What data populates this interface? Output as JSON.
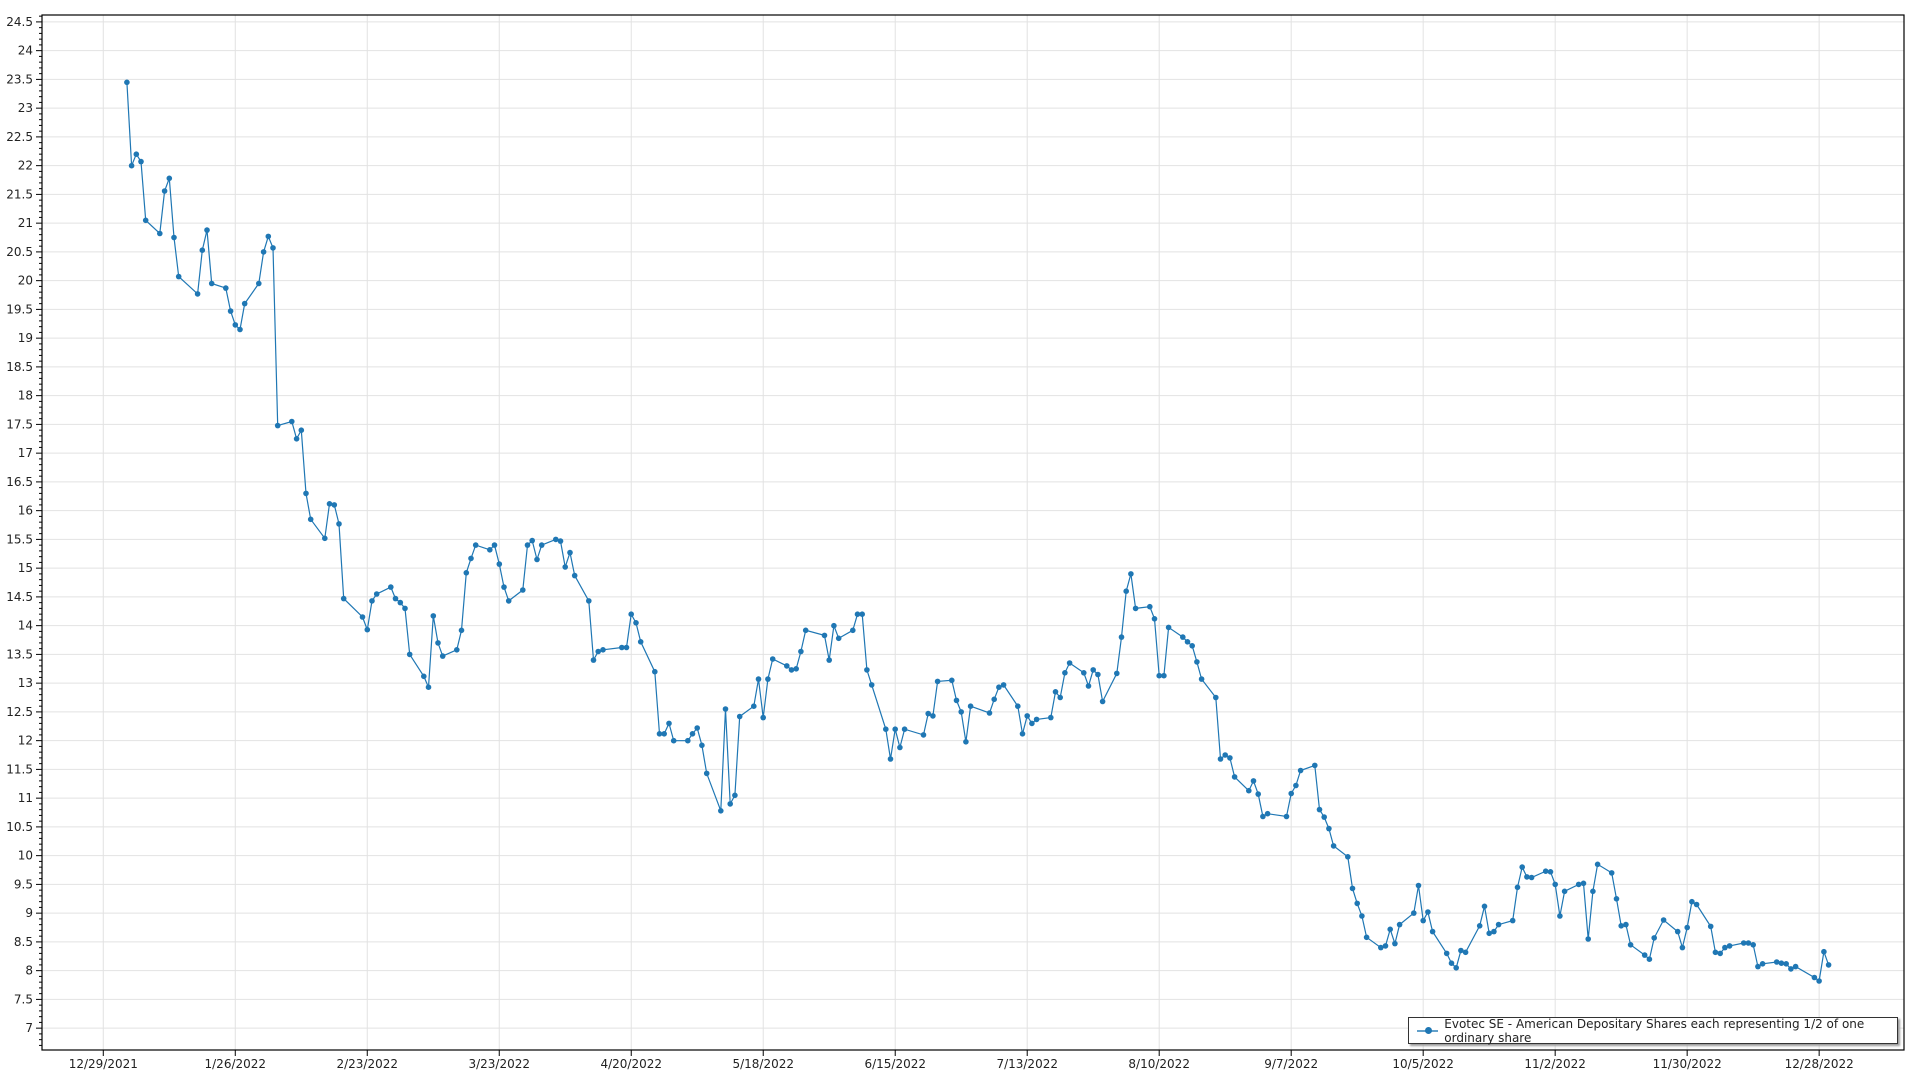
{
  "chart_data": {
    "type": "line",
    "title": "",
    "xlabel": "",
    "ylabel": "",
    "grid": true,
    "legend_placement": "bottom-right",
    "series_color": "#1f77b4",
    "xlim": [
      "2021-12-16",
      "2023-01-15"
    ],
    "ylim": [
      6.62,
      24.62
    ],
    "y_ticks": [
      "7",
      "7.5",
      "8",
      "8.5",
      "9",
      "9.5",
      "10",
      "10.5",
      "11",
      "11.5",
      "12",
      "12.5",
      "13",
      "13.5",
      "14",
      "14.5",
      "15",
      "15.5",
      "16",
      "16.5",
      "17",
      "17.5",
      "18",
      "18.5",
      "19",
      "19.5",
      "20",
      "20.5",
      "21",
      "21.5",
      "22",
      "22.5",
      "23",
      "23.5",
      "24",
      "24.5"
    ],
    "x_ticks": [
      "12/29/2021",
      "1/26/2022",
      "2/23/2022",
      "3/23/2022",
      "4/20/2022",
      "5/18/2022",
      "6/15/2022",
      "7/13/2022",
      "8/10/2022",
      "9/7/2022",
      "10/5/2022",
      "11/2/2022",
      "11/30/2022",
      "12/28/2022"
    ],
    "series": [
      {
        "name": "Evotec SE - American Depositary Shares each representing 1/2 of one ordinary share",
        "points": [
          [
            "2022-01-03",
            23.45
          ],
          [
            "2022-01-04",
            22.0
          ],
          [
            "2022-01-05",
            22.2
          ],
          [
            "2022-01-06",
            22.07
          ],
          [
            "2022-01-07",
            21.05
          ],
          [
            "2022-01-10",
            20.82
          ],
          [
            "2022-01-11",
            21.56
          ],
          [
            "2022-01-12",
            21.78
          ],
          [
            "2022-01-13",
            20.75
          ],
          [
            "2022-01-14",
            20.07
          ],
          [
            "2022-01-18",
            19.77
          ],
          [
            "2022-01-19",
            20.53
          ],
          [
            "2022-01-20",
            20.88
          ],
          [
            "2022-01-21",
            19.95
          ],
          [
            "2022-01-24",
            19.87
          ],
          [
            "2022-01-25",
            19.47
          ],
          [
            "2022-01-26",
            19.23
          ],
          [
            "2022-01-27",
            19.15
          ],
          [
            "2022-01-28",
            19.6
          ],
          [
            "2022-01-31",
            19.95
          ],
          [
            "2022-02-01",
            20.5
          ],
          [
            "2022-02-02",
            20.77
          ],
          [
            "2022-02-03",
            20.57
          ],
          [
            "2022-02-04",
            17.48
          ],
          [
            "2022-02-07",
            17.55
          ],
          [
            "2022-02-08",
            17.25
          ],
          [
            "2022-02-09",
            17.4
          ],
          [
            "2022-02-10",
            16.3
          ],
          [
            "2022-02-11",
            15.85
          ],
          [
            "2022-02-14",
            15.52
          ],
          [
            "2022-02-15",
            16.12
          ],
          [
            "2022-02-16",
            16.1
          ],
          [
            "2022-02-17",
            15.77
          ],
          [
            "2022-02-18",
            14.47
          ],
          [
            "2022-02-22",
            14.15
          ],
          [
            "2022-02-23",
            13.93
          ],
          [
            "2022-02-24",
            14.43
          ],
          [
            "2022-02-25",
            14.55
          ],
          [
            "2022-02-28",
            14.67
          ],
          [
            "2022-03-01",
            14.47
          ],
          [
            "2022-03-02",
            14.4
          ],
          [
            "2022-03-03",
            14.3
          ],
          [
            "2022-03-04",
            13.5
          ],
          [
            "2022-03-07",
            13.12
          ],
          [
            "2022-03-08",
            12.93
          ],
          [
            "2022-03-09",
            14.17
          ],
          [
            "2022-03-10",
            13.7
          ],
          [
            "2022-03-11",
            13.47
          ],
          [
            "2022-03-14",
            13.58
          ],
          [
            "2022-03-15",
            13.92
          ],
          [
            "2022-03-16",
            14.92
          ],
          [
            "2022-03-17",
            15.17
          ],
          [
            "2022-03-18",
            15.4
          ],
          [
            "2022-03-21",
            15.32
          ],
          [
            "2022-03-22",
            15.4
          ],
          [
            "2022-03-23",
            15.07
          ],
          [
            "2022-03-24",
            14.67
          ],
          [
            "2022-03-25",
            14.43
          ],
          [
            "2022-03-28",
            14.62
          ],
          [
            "2022-03-29",
            15.4
          ],
          [
            "2022-03-30",
            15.48
          ],
          [
            "2022-03-31",
            15.15
          ],
          [
            "2022-04-01",
            15.4
          ],
          [
            "2022-04-04",
            15.5
          ],
          [
            "2022-04-05",
            15.47
          ],
          [
            "2022-04-06",
            15.02
          ],
          [
            "2022-04-07",
            15.27
          ],
          [
            "2022-04-08",
            14.87
          ],
          [
            "2022-04-11",
            14.43
          ],
          [
            "2022-04-12",
            13.4
          ],
          [
            "2022-04-13",
            13.55
          ],
          [
            "2022-04-14",
            13.58
          ],
          [
            "2022-04-18",
            13.62
          ],
          [
            "2022-04-19",
            13.62
          ],
          [
            "2022-04-20",
            14.2
          ],
          [
            "2022-04-21",
            14.05
          ],
          [
            "2022-04-22",
            13.72
          ],
          [
            "2022-04-25",
            13.2
          ],
          [
            "2022-04-26",
            12.12
          ],
          [
            "2022-04-27",
            12.12
          ],
          [
            "2022-04-28",
            12.3
          ],
          [
            "2022-04-29",
            12.0
          ],
          [
            "2022-05-02",
            12.0
          ],
          [
            "2022-05-03",
            12.12
          ],
          [
            "2022-05-04",
            12.22
          ],
          [
            "2022-05-05",
            11.92
          ],
          [
            "2022-05-06",
            11.43
          ],
          [
            "2022-05-09",
            10.78
          ],
          [
            "2022-05-10",
            12.55
          ],
          [
            "2022-05-11",
            10.9
          ],
          [
            "2022-05-12",
            11.05
          ],
          [
            "2022-05-13",
            12.42
          ],
          [
            "2022-05-16",
            12.6
          ],
          [
            "2022-05-17",
            13.07
          ],
          [
            "2022-05-18",
            12.4
          ],
          [
            "2022-05-19",
            13.07
          ],
          [
            "2022-05-20",
            13.42
          ],
          [
            "2022-05-23",
            13.3
          ],
          [
            "2022-05-24",
            13.23
          ],
          [
            "2022-05-25",
            13.25
          ],
          [
            "2022-05-26",
            13.55
          ],
          [
            "2022-05-27",
            13.92
          ],
          [
            "2022-05-31",
            13.83
          ],
          [
            "2022-06-01",
            13.4
          ],
          [
            "2022-06-02",
            14.0
          ],
          [
            "2022-06-03",
            13.78
          ],
          [
            "2022-06-06",
            13.92
          ],
          [
            "2022-06-07",
            14.2
          ],
          [
            "2022-06-08",
            14.2
          ],
          [
            "2022-06-09",
            13.23
          ],
          [
            "2022-06-10",
            12.97
          ],
          [
            "2022-06-13",
            12.2
          ],
          [
            "2022-06-14",
            11.68
          ],
          [
            "2022-06-15",
            12.2
          ],
          [
            "2022-06-16",
            11.88
          ],
          [
            "2022-06-17",
            12.2
          ],
          [
            "2022-06-21",
            12.1
          ],
          [
            "2022-06-22",
            12.47
          ],
          [
            "2022-06-23",
            12.43
          ],
          [
            "2022-06-24",
            13.03
          ],
          [
            "2022-06-27",
            13.05
          ],
          [
            "2022-06-28",
            12.7
          ],
          [
            "2022-06-29",
            12.5
          ],
          [
            "2022-06-30",
            11.98
          ],
          [
            "2022-07-01",
            12.6
          ],
          [
            "2022-07-05",
            12.48
          ],
          [
            "2022-07-06",
            12.72
          ],
          [
            "2022-07-07",
            12.93
          ],
          [
            "2022-07-08",
            12.97
          ],
          [
            "2022-07-11",
            12.6
          ],
          [
            "2022-07-12",
            12.12
          ],
          [
            "2022-07-13",
            12.43
          ],
          [
            "2022-07-14",
            12.3
          ],
          [
            "2022-07-15",
            12.37
          ],
          [
            "2022-07-18",
            12.4
          ],
          [
            "2022-07-19",
            12.85
          ],
          [
            "2022-07-20",
            12.75
          ],
          [
            "2022-07-21",
            13.18
          ],
          [
            "2022-07-22",
            13.35
          ],
          [
            "2022-07-25",
            13.18
          ],
          [
            "2022-07-26",
            12.95
          ],
          [
            "2022-07-27",
            13.23
          ],
          [
            "2022-07-28",
            13.15
          ],
          [
            "2022-07-29",
            12.68
          ],
          [
            "2022-08-01",
            13.17
          ],
          [
            "2022-08-02",
            13.8
          ],
          [
            "2022-08-03",
            14.6
          ],
          [
            "2022-08-04",
            14.9
          ],
          [
            "2022-08-05",
            14.3
          ],
          [
            "2022-08-08",
            14.33
          ],
          [
            "2022-08-09",
            14.12
          ],
          [
            "2022-08-10",
            13.13
          ],
          [
            "2022-08-11",
            13.13
          ],
          [
            "2022-08-12",
            13.97
          ],
          [
            "2022-08-15",
            13.8
          ],
          [
            "2022-08-16",
            13.72
          ],
          [
            "2022-08-17",
            13.65
          ],
          [
            "2022-08-18",
            13.37
          ],
          [
            "2022-08-19",
            13.07
          ],
          [
            "2022-08-22",
            12.75
          ],
          [
            "2022-08-23",
            11.68
          ],
          [
            "2022-08-24",
            11.75
          ],
          [
            "2022-08-25",
            11.7
          ],
          [
            "2022-08-26",
            11.37
          ],
          [
            "2022-08-29",
            11.13
          ],
          [
            "2022-08-30",
            11.3
          ],
          [
            "2022-08-31",
            11.07
          ],
          [
            "2022-09-01",
            10.68
          ],
          [
            "2022-09-02",
            10.73
          ],
          [
            "2022-09-06",
            10.68
          ],
          [
            "2022-09-07",
            11.08
          ],
          [
            "2022-09-08",
            11.22
          ],
          [
            "2022-09-09",
            11.48
          ],
          [
            "2022-09-12",
            11.57
          ],
          [
            "2022-09-13",
            10.8
          ],
          [
            "2022-09-14",
            10.67
          ],
          [
            "2022-09-15",
            10.47
          ],
          [
            "2022-09-16",
            10.17
          ],
          [
            "2022-09-19",
            9.98
          ],
          [
            "2022-09-20",
            9.43
          ],
          [
            "2022-09-21",
            9.17
          ],
          [
            "2022-09-22",
            8.95
          ],
          [
            "2022-09-23",
            8.58
          ],
          [
            "2022-09-26",
            8.4
          ],
          [
            "2022-09-27",
            8.43
          ],
          [
            "2022-09-28",
            8.72
          ],
          [
            "2022-09-29",
            8.47
          ],
          [
            "2022-09-30",
            8.8
          ],
          [
            "2022-10-03",
            9.0
          ],
          [
            "2022-10-04",
            9.48
          ],
          [
            "2022-10-05",
            8.87
          ],
          [
            "2022-10-06",
            9.02
          ],
          [
            "2022-10-07",
            8.68
          ],
          [
            "2022-10-10",
            8.3
          ],
          [
            "2022-10-11",
            8.13
          ],
          [
            "2022-10-12",
            8.05
          ],
          [
            "2022-10-13",
            8.35
          ],
          [
            "2022-10-14",
            8.32
          ],
          [
            "2022-10-17",
            8.78
          ],
          [
            "2022-10-18",
            9.12
          ],
          [
            "2022-10-19",
            8.65
          ],
          [
            "2022-10-20",
            8.68
          ],
          [
            "2022-10-21",
            8.8
          ],
          [
            "2022-10-24",
            8.87
          ],
          [
            "2022-10-25",
            9.45
          ],
          [
            "2022-10-26",
            9.8
          ],
          [
            "2022-10-27",
            9.63
          ],
          [
            "2022-10-28",
            9.62
          ],
          [
            "2022-10-31",
            9.73
          ],
          [
            "2022-11-01",
            9.72
          ],
          [
            "2022-11-02",
            9.5
          ],
          [
            "2022-11-03",
            8.95
          ],
          [
            "2022-11-04",
            9.38
          ],
          [
            "2022-11-07",
            9.5
          ],
          [
            "2022-11-08",
            9.52
          ],
          [
            "2022-11-09",
            8.55
          ],
          [
            "2022-11-10",
            9.38
          ],
          [
            "2022-11-11",
            9.85
          ],
          [
            "2022-11-14",
            9.7
          ],
          [
            "2022-11-15",
            9.25
          ],
          [
            "2022-11-16",
            8.78
          ],
          [
            "2022-11-17",
            8.8
          ],
          [
            "2022-11-18",
            8.45
          ],
          [
            "2022-11-21",
            8.27
          ],
          [
            "2022-11-22",
            8.2
          ],
          [
            "2022-11-23",
            8.57
          ],
          [
            "2022-11-25",
            8.88
          ],
          [
            "2022-11-28",
            8.68
          ],
          [
            "2022-11-29",
            8.4
          ],
          [
            "2022-11-30",
            8.75
          ],
          [
            "2022-12-01",
            9.2
          ],
          [
            "2022-12-02",
            9.15
          ],
          [
            "2022-12-05",
            8.77
          ],
          [
            "2022-12-06",
            8.32
          ],
          [
            "2022-12-07",
            8.3
          ],
          [
            "2022-12-08",
            8.4
          ],
          [
            "2022-12-09",
            8.43
          ],
          [
            "2022-12-12",
            8.48
          ],
          [
            "2022-12-13",
            8.48
          ],
          [
            "2022-12-14",
            8.45
          ],
          [
            "2022-12-15",
            8.07
          ],
          [
            "2022-12-16",
            8.12
          ],
          [
            "2022-12-19",
            8.15
          ],
          [
            "2022-12-20",
            8.13
          ],
          [
            "2022-12-21",
            8.12
          ],
          [
            "2022-12-22",
            8.03
          ],
          [
            "2022-12-23",
            8.07
          ],
          [
            "2022-12-27",
            7.88
          ],
          [
            "2022-12-28",
            7.82
          ],
          [
            "2022-12-29",
            8.33
          ],
          [
            "2022-12-30",
            8.1
          ]
        ]
      }
    ]
  }
}
